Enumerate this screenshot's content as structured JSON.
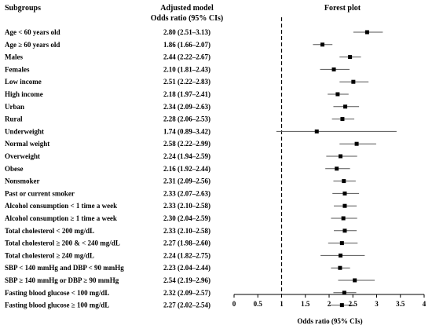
{
  "chart_data": {
    "type": "forest",
    "headers": {
      "subgroups": "Subgroups",
      "model_line1": "Adjusted model",
      "model_line2": "Odds ratio (95% CIs)",
      "plot": "Forest plot"
    },
    "xlabel": "Odds ratio (95% CIs)",
    "xlim": [
      0,
      4
    ],
    "xticks": [
      "0",
      "0.5",
      "1",
      "1.5",
      "2",
      "2.5",
      "3",
      "3.5",
      "4"
    ],
    "reference_line": 1,
    "rows": [
      {
        "label": "Age < 60 years old",
        "text": "2.80 (2.51–3.13)",
        "or": 2.8,
        "lo": 2.51,
        "hi": 3.13
      },
      {
        "label": "Age ≥ 60 years old",
        "text": "1.86 (1.66–2.07)",
        "or": 1.86,
        "lo": 1.66,
        "hi": 2.07
      },
      {
        "label": "Males",
        "text": "2.44 (2.22–2.67)",
        "or": 2.44,
        "lo": 2.22,
        "hi": 2.67
      },
      {
        "label": "Females",
        "text": "2.10 (1.81–2.43)",
        "or": 2.1,
        "lo": 1.81,
        "hi": 2.43
      },
      {
        "label": "Low income",
        "text": "2.51 (2.22–2.83)",
        "or": 2.51,
        "lo": 2.22,
        "hi": 2.83
      },
      {
        "label": "High income",
        "text": "2.18 (1.97–2.41)",
        "or": 2.18,
        "lo": 1.97,
        "hi": 2.41
      },
      {
        "label": "Urban",
        "text": "2.34 (2.09–2.63)",
        "or": 2.34,
        "lo": 2.09,
        "hi": 2.63
      },
      {
        "label": "Rural",
        "text": "2.28 (2.06–2.53)",
        "or": 2.28,
        "lo": 2.06,
        "hi": 2.53
      },
      {
        "label": "Underweight",
        "text": "1.74 (0.89–3.42)",
        "or": 1.74,
        "lo": 0.89,
        "hi": 3.42
      },
      {
        "label": "Normal weight",
        "text": "2.58 (2.22–2.99)",
        "or": 2.58,
        "lo": 2.22,
        "hi": 2.99
      },
      {
        "label": "Overweight",
        "text": "2.24 (1.94–2.59)",
        "or": 2.24,
        "lo": 1.94,
        "hi": 2.59
      },
      {
        "label": "Obese",
        "text": "2.16 (1.92–2.44)",
        "or": 2.16,
        "lo": 1.92,
        "hi": 2.44
      },
      {
        "label": "Nonsmoker",
        "text": "2.31 (2.09–2.56)",
        "or": 2.31,
        "lo": 2.09,
        "hi": 2.56
      },
      {
        "label": "Past or current smoker",
        "text": "2.33 (2.07–2.63)",
        "or": 2.33,
        "lo": 2.07,
        "hi": 2.63
      },
      {
        "label": "Alcohol consumption < 1 time a week",
        "text": "2.33 (2.10–2.58)",
        "or": 2.33,
        "lo": 2.1,
        "hi": 2.58
      },
      {
        "label": "Alcohol consumption ≥ 1 time a week",
        "text": "2.30 (2.04–2.59)",
        "or": 2.3,
        "lo": 2.04,
        "hi": 2.59
      },
      {
        "label": "Total cholesterol < 200 mg/dL",
        "text": "2.33 (2.10–2.58)",
        "or": 2.33,
        "lo": 2.1,
        "hi": 2.58
      },
      {
        "label": "Total cholesterol ≥ 200 & < 240 mg/dL",
        "text": "2.27 (1.98–2.60)",
        "or": 2.27,
        "lo": 1.98,
        "hi": 2.6
      },
      {
        "label": "Total cholesterol ≥ 240 mg/dL",
        "text": "2.24 (1.82–2.75)",
        "or": 2.24,
        "lo": 1.82,
        "hi": 2.75
      },
      {
        "label": "SBP < 140 mmHg and DBP < 90 mmHg",
        "text": "2.23 (2.04–2.44)",
        "or": 2.23,
        "lo": 2.04,
        "hi": 2.44
      },
      {
        "label": "SBP ≥ 140 mmHg or DBP ≥ 90 mmHg",
        "text": "2.54 (2.19–2.96)",
        "or": 2.54,
        "lo": 2.19,
        "hi": 2.96
      },
      {
        "label": "Fasting blood glucose < 100 mg/dL",
        "text": "2.32 (2.09–2.57)",
        "or": 2.32,
        "lo": 2.09,
        "hi": 2.57
      },
      {
        "label": "Fasting blood glucose ≥ 100 mg/dL",
        "text": "2.27 (2.02–2.54)",
        "or": 2.27,
        "lo": 2.02,
        "hi": 2.54
      }
    ],
    "grid": false,
    "colors": {
      "marker": "#000000",
      "ci_line": "#555555",
      "axis": "#000000"
    }
  }
}
